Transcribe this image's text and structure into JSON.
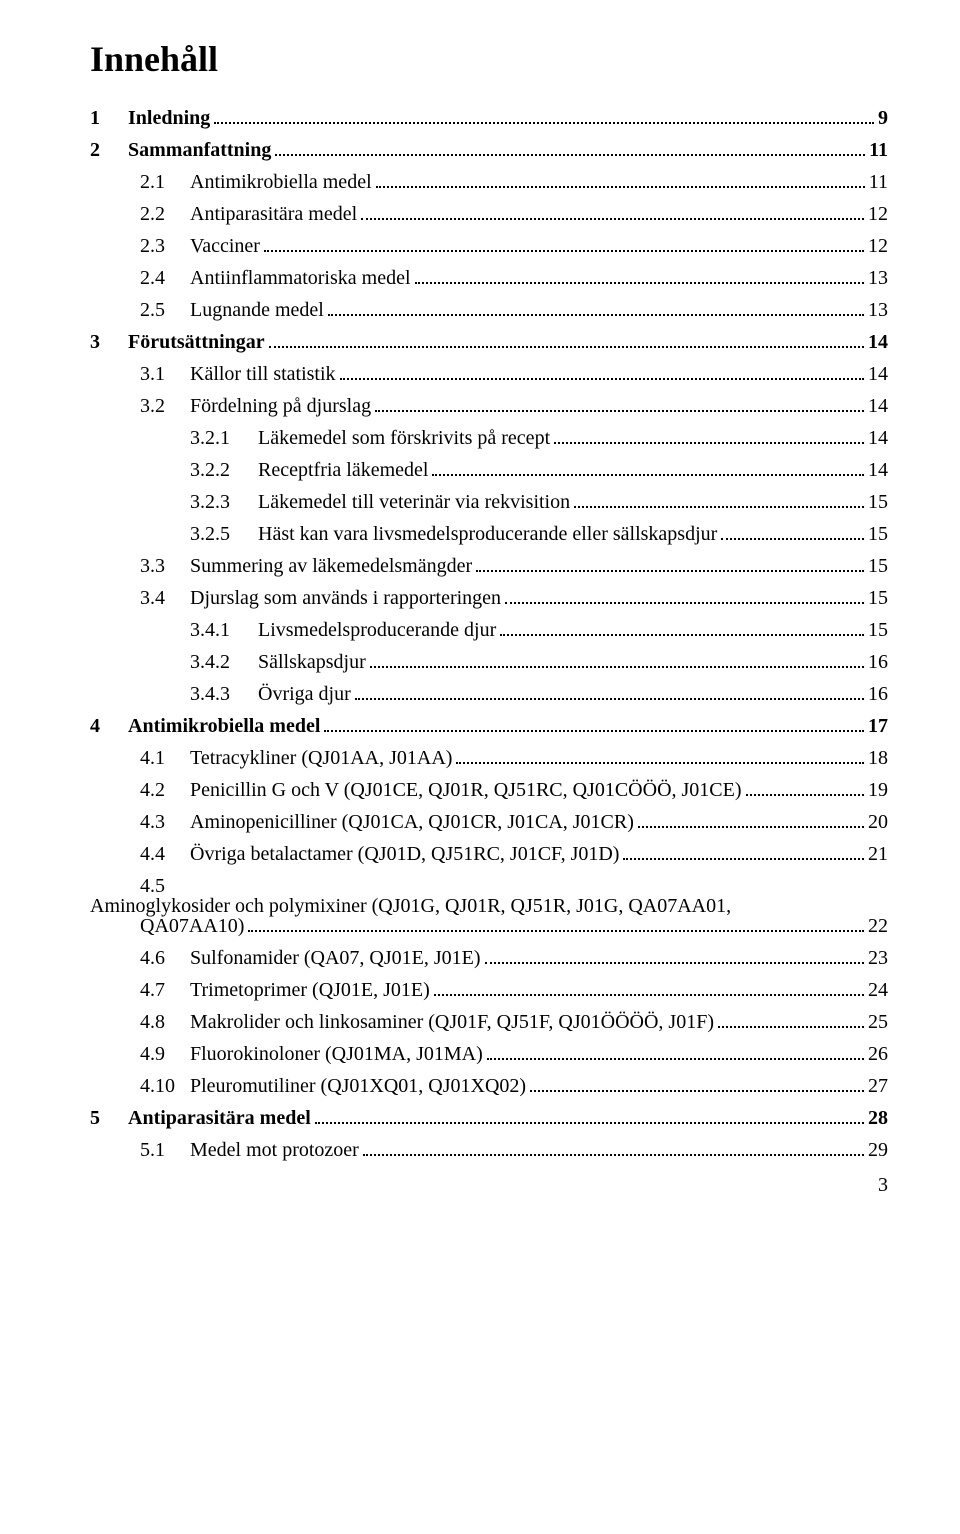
{
  "title": "Innehåll",
  "pageNumber": "3",
  "entries": [
    {
      "num": "1",
      "label": "Inledning",
      "page": "9",
      "level": 0,
      "bold": true
    },
    {
      "num": "2",
      "label": "Sammanfattning",
      "page": "11",
      "level": 0,
      "bold": true
    },
    {
      "num": "2.1",
      "label": "Antimikrobiella medel",
      "page": "11",
      "level": 1,
      "bold": false
    },
    {
      "num": "2.2",
      "label": "Antiparasitära medel",
      "page": "12",
      "level": 1,
      "bold": false
    },
    {
      "num": "2.3",
      "label": "Vacciner",
      "page": "12",
      "level": 1,
      "bold": false
    },
    {
      "num": "2.4",
      "label": "Antiinflammatoriska medel",
      "page": "13",
      "level": 1,
      "bold": false
    },
    {
      "num": "2.5",
      "label": "Lugnande medel",
      "page": "13",
      "level": 1,
      "bold": false
    },
    {
      "num": "3",
      "label": "Förutsättningar",
      "page": "14",
      "level": 0,
      "bold": true
    },
    {
      "num": "3.1",
      "label": "Källor till statistik",
      "page": "14",
      "level": 1,
      "bold": false
    },
    {
      "num": "3.2",
      "label": "Fördelning på djurslag",
      "page": "14",
      "level": 1,
      "bold": false
    },
    {
      "num": "3.2.1",
      "label": "Läkemedel som förskrivits på recept",
      "page": "14",
      "level": 2,
      "bold": false
    },
    {
      "num": "3.2.2",
      "label": "Receptfria läkemedel",
      "page": "14",
      "level": 2,
      "bold": false
    },
    {
      "num": "3.2.3",
      "label": "Läkemedel till veterinär via rekvisition",
      "page": "15",
      "level": 2,
      "bold": false
    },
    {
      "num": "3.2.5",
      "label": "Häst kan vara livsmedelsproducerande eller sällskapsdjur",
      "page": "15",
      "level": 2,
      "bold": false
    },
    {
      "num": "3.3",
      "label": "Summering av läkemedelsmängder",
      "page": "15",
      "level": 1,
      "bold": false
    },
    {
      "num": "3.4",
      "label": "Djurslag som används i rapporteringen",
      "page": "15",
      "level": 1,
      "bold": false
    },
    {
      "num": "3.4.1",
      "label": "Livsmedelsproducerande djur",
      "page": "15",
      "level": 2,
      "bold": false
    },
    {
      "num": "3.4.2",
      "label": "Sällskapsdjur",
      "page": "16",
      "level": 2,
      "bold": false
    },
    {
      "num": "3.4.3",
      "label": "Övriga djur",
      "page": "16",
      "level": 2,
      "bold": false
    },
    {
      "num": "4",
      "label": "Antimikrobiella medel",
      "page": "17",
      "level": 0,
      "bold": true
    },
    {
      "num": "4.1",
      "label": "Tetracykliner (QJ01AA, J01AA)",
      "page": "18",
      "level": 1,
      "bold": false
    },
    {
      "num": "4.2",
      "label": "Penicillin G och V (QJ01CE, QJ01R, QJ51RC, QJ01CÖÖÖ, J01CE)",
      "page": "19",
      "level": 1,
      "bold": false
    },
    {
      "num": "4.3",
      "label": "Aminopenicilliner (QJ01CA, QJ01CR, J01CA, J01CR)",
      "page": "20",
      "level": 1,
      "bold": false
    },
    {
      "num": "4.4",
      "label": "Övriga betalactamer (QJ01D, QJ51RC, J01CF, J01D)",
      "page": "21",
      "level": 1,
      "bold": false
    },
    {
      "num": "4.5",
      "label": "Aminoglykosider och polymixiner (QJ01G, QJ01R, QJ51R, J01G, QA07AA01,",
      "label2": "QA07AA10)",
      "page": "22",
      "level": 1,
      "bold": false,
      "wrapped": true
    },
    {
      "num": "4.6",
      "label": "Sulfonamider (QA07, QJ01E, J01E)",
      "page": "23",
      "level": 1,
      "bold": false
    },
    {
      "num": "4.7",
      "label": "Trimetoprimer (QJ01E, J01E)",
      "page": "24",
      "level": 1,
      "bold": false
    },
    {
      "num": "4.8",
      "label": "Makrolider och linkosaminer (QJ01F, QJ51F, QJ01ÖÖÖÖ, J01F)",
      "page": "25",
      "level": 1,
      "bold": false
    },
    {
      "num": "4.9",
      "label": "Fluorokinoloner (QJ01MA, J01MA)",
      "page": "26",
      "level": 1,
      "bold": false
    },
    {
      "num": "4.10",
      "label": "Pleuromutiliner (QJ01XQ01, QJ01XQ02)",
      "page": "27",
      "level": 1,
      "bold": false
    },
    {
      "num": "5",
      "label": "Antiparasitära medel",
      "page": "28",
      "level": 0,
      "bold": true
    },
    {
      "num": "5.1",
      "label": "Medel mot protozoer",
      "page": "29",
      "level": 1,
      "bold": false
    }
  ]
}
